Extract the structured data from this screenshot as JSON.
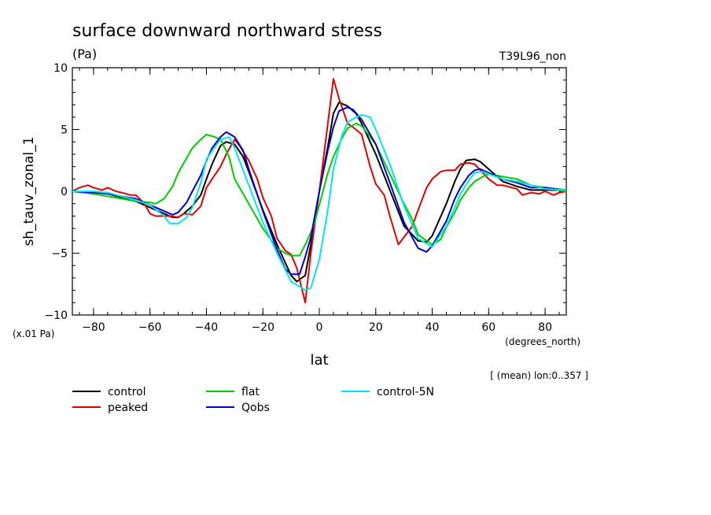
{
  "chart_data": {
    "type": "line",
    "title": "surface downward northward stress",
    "units": "(Pa)",
    "run_label": "T39L96_non",
    "ylabel": "sh_tauv_zonal_1",
    "xlabel": "lat",
    "xunits": "(degrees_north)",
    "yscale_note": "(x.01 Pa)",
    "mean_note": "[ (mean) lon:0..357 ]",
    "xlim": [
      -87.5,
      87.5
    ],
    "ylim": [
      -10,
      10
    ],
    "x_ticks": [
      -80,
      -60,
      -40,
      -20,
      0,
      20,
      40,
      60,
      80
    ],
    "x_tick_labels": [
      "−80",
      "−60",
      "−40",
      "−20",
      "0",
      "20",
      "40",
      "60",
      "80"
    ],
    "y_ticks": [
      -10,
      -5,
      0,
      5,
      10
    ],
    "y_tick_labels": [
      "−10",
      "−5",
      "0",
      "5",
      "10"
    ],
    "grid": false,
    "legend_position": "bottom",
    "series": [
      {
        "name": "control",
        "color": "#000000",
        "x": [
          -87.5,
          -80,
          -75,
          -70,
          -65,
          -60,
          -55,
          -52,
          -50,
          -48,
          -45,
          -42,
          -40,
          -38,
          -35,
          -33,
          -30,
          -27,
          -25,
          -20,
          -15,
          -10,
          -8,
          -5,
          -3,
          0,
          3,
          5,
          7,
          10,
          13,
          15,
          20,
          25,
          30,
          35,
          38,
          40,
          45,
          48,
          50,
          52,
          55,
          57,
          60,
          65,
          70,
          75,
          80,
          87.5
        ],
        "y": [
          0,
          0,
          -0.2,
          -0.5,
          -0.8,
          -1.3,
          -1.8,
          -2.1,
          -2.1,
          -1.8,
          -1.2,
          -0.3,
          1.0,
          2.2,
          3.7,
          4.0,
          3.8,
          2.8,
          1.6,
          -1.5,
          -4.3,
          -6.8,
          -7.3,
          -6.8,
          -4.3,
          0,
          3.6,
          6.3,
          7.2,
          6.9,
          6.3,
          5.5,
          3.0,
          0.1,
          -2.8,
          -4.0,
          -4.1,
          -3.6,
          -1.0,
          0.8,
          1.8,
          2.5,
          2.6,
          2.4,
          1.8,
          0.8,
          0.4,
          0.1,
          0.1,
          0.1
        ]
      },
      {
        "name": "peaked",
        "color": "#e00000",
        "x": [
          -87.5,
          -85,
          -82,
          -80,
          -77,
          -75,
          -72,
          -70,
          -67,
          -65,
          -62,
          -60,
          -58,
          -55,
          -53,
          -50,
          -48,
          -45,
          -42,
          -40,
          -38,
          -35,
          -33,
          -30,
          -28,
          -25,
          -22,
          -20,
          -17,
          -15,
          -12,
          -10,
          -8,
          -5,
          -3,
          0,
          3,
          5,
          7,
          10,
          13,
          15,
          18,
          20,
          23,
          25,
          28,
          30,
          33,
          35,
          38,
          40,
          43,
          45,
          48,
          50,
          53,
          55,
          58,
          60,
          63,
          65,
          70,
          72,
          75,
          78,
          80,
          83,
          85,
          87.5
        ],
        "y": [
          0,
          0.3,
          0.5,
          0.3,
          0.1,
          0.3,
          0,
          -0.1,
          -0.3,
          -0.3,
          -1.0,
          -1.8,
          -2.0,
          -2.0,
          -2.0,
          -2.1,
          -1.8,
          -1.9,
          -1.2,
          0.3,
          1.0,
          2.0,
          3.0,
          4.2,
          3.6,
          2.5,
          1.0,
          -0.5,
          -2.0,
          -3.8,
          -4.8,
          -5.1,
          -6.2,
          -9.0,
          -5.0,
          0,
          5.5,
          9.1,
          7.5,
          5.5,
          5.0,
          4.6,
          2.0,
          0.6,
          -0.3,
          -2.0,
          -4.3,
          -3.7,
          -2.8,
          -1.5,
          0.3,
          1.0,
          1.6,
          1.7,
          1.7,
          2.2,
          2.3,
          2.2,
          1.5,
          1.0,
          0.5,
          0.5,
          0.2,
          -0.3,
          -0.1,
          -0.2,
          0,
          -0.3,
          -0.1,
          0
        ]
      },
      {
        "name": "flat",
        "color": "#00cc00",
        "x": [
          -87.5,
          -80,
          -75,
          -70,
          -65,
          -60,
          -58,
          -55,
          -52,
          -50,
          -47,
          -45,
          -42,
          -40,
          -37,
          -35,
          -32,
          -30,
          -25,
          -20,
          -15,
          -12,
          -10,
          -7,
          -5,
          -2,
          0,
          3,
          5,
          8,
          10,
          13,
          15,
          20,
          25,
          30,
          33,
          35,
          38,
          40,
          43,
          45,
          48,
          50,
          53,
          55,
          58,
          60,
          65,
          70,
          75,
          80,
          87.5
        ],
        "y": [
          0,
          -0.2,
          -0.4,
          -0.6,
          -0.8,
          -0.9,
          -1.0,
          -0.6,
          0.4,
          1.5,
          2.7,
          3.5,
          4.2,
          4.6,
          4.4,
          4.2,
          2.8,
          1.0,
          -1.0,
          -3.0,
          -4.6,
          -5.0,
          -5.2,
          -5.2,
          -4.3,
          -2.8,
          -1.1,
          1.5,
          2.8,
          4.3,
          5.1,
          5.5,
          5.3,
          3.8,
          1.4,
          -1.0,
          -2.3,
          -3.5,
          -4.0,
          -4.3,
          -3.9,
          -2.9,
          -1.7,
          -0.7,
          0.3,
          0.8,
          1.2,
          1.4,
          1.2,
          1.0,
          0.5,
          0.3,
          0
        ]
      },
      {
        "name": "Qobs",
        "color": "#0000cc",
        "x": [
          -87.5,
          -80,
          -75,
          -70,
          -65,
          -60,
          -55,
          -52,
          -50,
          -47,
          -45,
          -42,
          -40,
          -38,
          -35,
          -33,
          -30,
          -27,
          -25,
          -20,
          -15,
          -12,
          -10,
          -7,
          -5,
          -3,
          0,
          3,
          5,
          7,
          10,
          12,
          15,
          20,
          25,
          30,
          35,
          38,
          40,
          45,
          48,
          50,
          53,
          55,
          57,
          60,
          65,
          70,
          75,
          80,
          87.5
        ],
        "y": [
          0,
          -0.1,
          -0.2,
          -0.4,
          -0.6,
          -1.1,
          -1.6,
          -1.9,
          -1.7,
          -0.9,
          0,
          1.3,
          2.5,
          3.5,
          4.4,
          4.8,
          4.4,
          3.3,
          1.8,
          -1.6,
          -4.7,
          -6.3,
          -6.7,
          -6.7,
          -5.3,
          -3.7,
          0,
          3.3,
          5.2,
          6.5,
          6.8,
          6.6,
          5.8,
          3.8,
          0.7,
          -2.5,
          -4.6,
          -4.9,
          -4.4,
          -2.4,
          -0.6,
          0.3,
          1.3,
          1.7,
          1.8,
          1.5,
          1.0,
          0.7,
          0.3,
          0.3,
          0.1
        ]
      },
      {
        "name": "control-5N",
        "color": "#00e5ee",
        "x": [
          -87.5,
          -80,
          -75,
          -70,
          -65,
          -60,
          -55,
          -53,
          -50,
          -47,
          -45,
          -42,
          -40,
          -37,
          -35,
          -32,
          -30,
          -25,
          -20,
          -15,
          -10,
          -7,
          -5,
          -3,
          0,
          3,
          5,
          8,
          10,
          13,
          15,
          18,
          20,
          25,
          30,
          35,
          40,
          45,
          48,
          50,
          53,
          55,
          58,
          60,
          65,
          70,
          75,
          80,
          87.5
        ],
        "y": [
          0,
          0,
          -0.1,
          -0.4,
          -0.7,
          -1.1,
          -2.0,
          -2.6,
          -2.6,
          -2.1,
          -1.3,
          0.7,
          2.6,
          3.6,
          4.2,
          4.4,
          3.5,
          0.5,
          -2.5,
          -5.0,
          -7.3,
          -7.7,
          -8.0,
          -7.8,
          -5.5,
          -1.5,
          1.8,
          4.5,
          5.6,
          6.0,
          6.2,
          6.0,
          5.0,
          2.2,
          -1.2,
          -3.8,
          -4.5,
          -2.8,
          -1.3,
          -0.2,
          0.9,
          1.5,
          1.6,
          1.4,
          1.0,
          0.8,
          0.5,
          0.2,
          0.1
        ]
      }
    ]
  }
}
